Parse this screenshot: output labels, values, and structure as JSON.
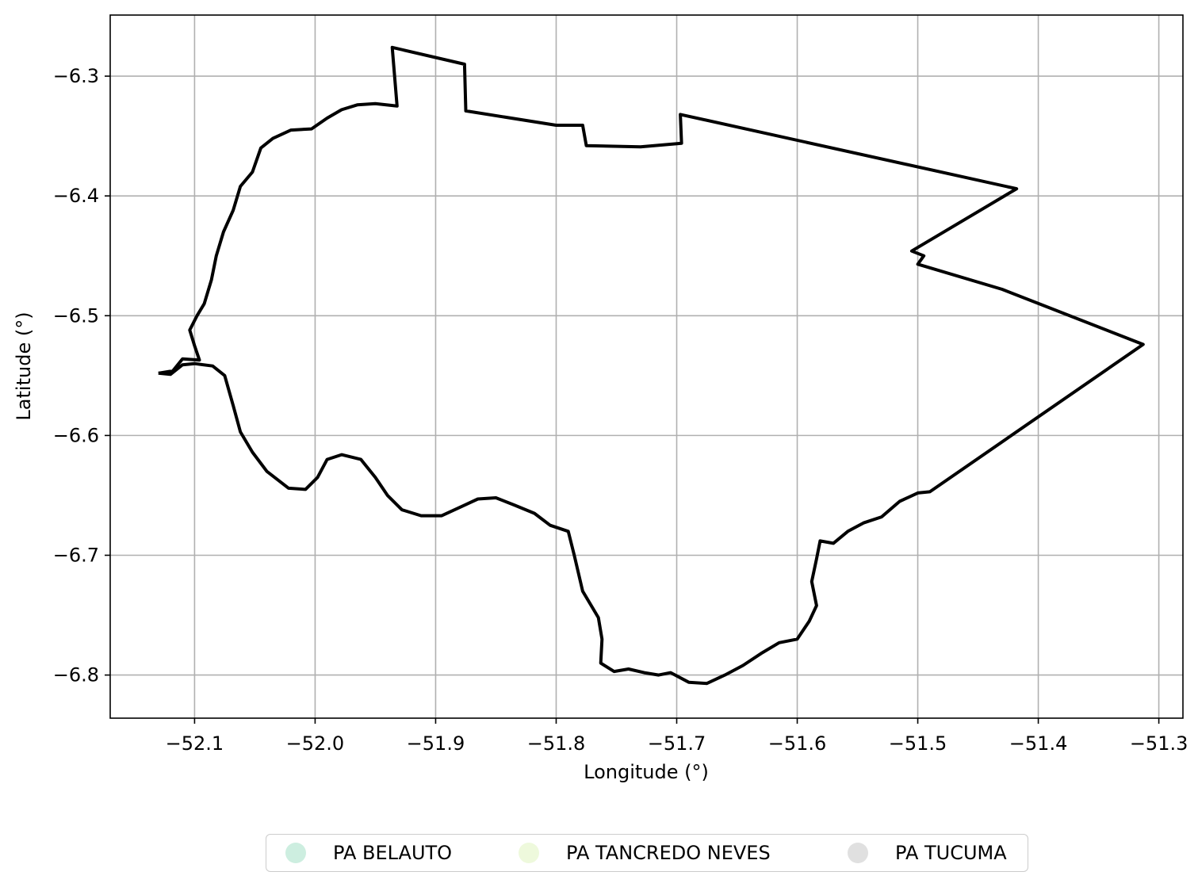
{
  "chart_data": {
    "type": "line",
    "xlabel": "Longitude (°)",
    "ylabel": "Latitude (°)",
    "xlim": [
      -52.17,
      -51.28
    ],
    "ylim": [
      -6.836,
      -6.249
    ],
    "xticks": [
      -52.1,
      -52.0,
      -51.9,
      -51.8,
      -51.7,
      -51.6,
      -51.5,
      -51.4,
      -51.3
    ],
    "xtick_labels": [
      "−52.1",
      "−52.0",
      "−51.9",
      "−51.8",
      "−51.7",
      "−51.6",
      "−51.5",
      "−51.4",
      "−51.3"
    ],
    "yticks": [
      -6.3,
      -6.4,
      -6.5,
      -6.6,
      -6.7,
      -6.8
    ],
    "ytick_labels": [
      "−6.3",
      "−6.4",
      "−6.5",
      "−6.6",
      "−6.7",
      "−6.8"
    ],
    "grid": true,
    "boundary_color": "#000000",
    "boundary": [
      [
        -52.13,
        -6.548
      ],
      [
        -52.12,
        -6.549
      ],
      [
        -52.11,
        -6.541
      ],
      [
        -52.1,
        -6.54
      ],
      [
        -52.085,
        -6.542
      ],
      [
        -52.075,
        -6.55
      ],
      [
        -52.068,
        -6.575
      ],
      [
        -52.062,
        -6.597
      ],
      [
        -52.052,
        -6.614
      ],
      [
        -52.04,
        -6.63
      ],
      [
        -52.022,
        -6.644
      ],
      [
        -52.008,
        -6.645
      ],
      [
        -51.998,
        -6.635
      ],
      [
        -51.99,
        -6.62
      ],
      [
        -51.978,
        -6.616
      ],
      [
        -51.962,
        -6.62
      ],
      [
        -51.95,
        -6.635
      ],
      [
        -51.94,
        -6.65
      ],
      [
        -51.928,
        -6.662
      ],
      [
        -51.912,
        -6.667
      ],
      [
        -51.895,
        -6.667
      ],
      [
        -51.88,
        -6.66
      ],
      [
        -51.865,
        -6.653
      ],
      [
        -51.85,
        -6.652
      ],
      [
        -51.835,
        -6.658
      ],
      [
        -51.818,
        -6.665
      ],
      [
        -51.805,
        -6.675
      ],
      [
        -51.79,
        -6.68
      ],
      [
        -51.785,
        -6.7
      ],
      [
        -51.778,
        -6.73
      ],
      [
        -51.765,
        -6.752
      ],
      [
        -51.762,
        -6.77
      ],
      [
        -51.763,
        -6.79
      ],
      [
        -51.752,
        -6.797
      ],
      [
        -51.74,
        -6.795
      ],
      [
        -51.727,
        -6.798
      ],
      [
        -51.715,
        -6.8
      ],
      [
        -51.705,
        -6.798
      ],
      [
        -51.69,
        -6.806
      ],
      [
        -51.675,
        -6.807
      ],
      [
        -51.66,
        -6.8
      ],
      [
        -51.645,
        -6.792
      ],
      [
        -51.63,
        -6.782
      ],
      [
        -51.615,
        -6.773
      ],
      [
        -51.6,
        -6.77
      ],
      [
        -51.59,
        -6.755
      ],
      [
        -51.584,
        -6.742
      ],
      [
        -51.588,
        -6.722
      ],
      [
        -51.584,
        -6.703
      ],
      [
        -51.581,
        -6.688
      ],
      [
        -51.57,
        -6.69
      ],
      [
        -51.558,
        -6.68
      ],
      [
        -51.545,
        -6.673
      ],
      [
        -51.53,
        -6.668
      ],
      [
        -51.515,
        -6.655
      ],
      [
        -51.5,
        -6.648
      ],
      [
        -51.49,
        -6.647
      ],
      [
        -51.313,
        -6.524
      ],
      [
        -51.43,
        -6.478
      ],
      [
        -51.5,
        -6.457
      ],
      [
        -51.495,
        -6.45
      ],
      [
        -51.505,
        -6.446
      ],
      [
        -51.418,
        -6.394
      ],
      [
        -51.697,
        -6.332
      ],
      [
        -51.696,
        -6.356
      ],
      [
        -51.73,
        -6.359
      ],
      [
        -51.775,
        -6.358
      ],
      [
        -51.778,
        -6.341
      ],
      [
        -51.8,
        -6.341
      ],
      [
        -51.875,
        -6.329
      ],
      [
        -51.876,
        -6.29
      ],
      [
        -51.936,
        -6.276
      ],
      [
        -51.932,
        -6.325
      ],
      [
        -51.95,
        -6.323
      ],
      [
        -51.965,
        -6.324
      ],
      [
        -51.978,
        -6.328
      ],
      [
        -51.99,
        -6.335
      ],
      [
        -52.003,
        -6.344
      ],
      [
        -52.02,
        -6.345
      ],
      [
        -52.035,
        -6.352
      ],
      [
        -52.045,
        -6.36
      ],
      [
        -52.052,
        -6.38
      ],
      [
        -52.062,
        -6.392
      ],
      [
        -52.068,
        -6.412
      ],
      [
        -52.076,
        -6.43
      ],
      [
        -52.082,
        -6.45
      ],
      [
        -52.086,
        -6.47
      ],
      [
        -52.092,
        -6.49
      ],
      [
        -52.098,
        -6.5
      ],
      [
        -52.104,
        -6.512
      ],
      [
        -52.1,
        -6.525
      ],
      [
        -52.096,
        -6.537
      ],
      [
        -52.11,
        -6.536
      ],
      [
        -52.118,
        -6.546
      ],
      [
        -52.13,
        -6.548
      ]
    ],
    "legend": {
      "placement": "below-center",
      "entries": [
        {
          "name": "PA BELAUTO",
          "color": "#cdeee0"
        },
        {
          "name": "PA TANCREDO NEVES",
          "color": "#eef9dc"
        },
        {
          "name": "PA TUCUMA",
          "color": "#e0e0e0"
        }
      ]
    }
  }
}
